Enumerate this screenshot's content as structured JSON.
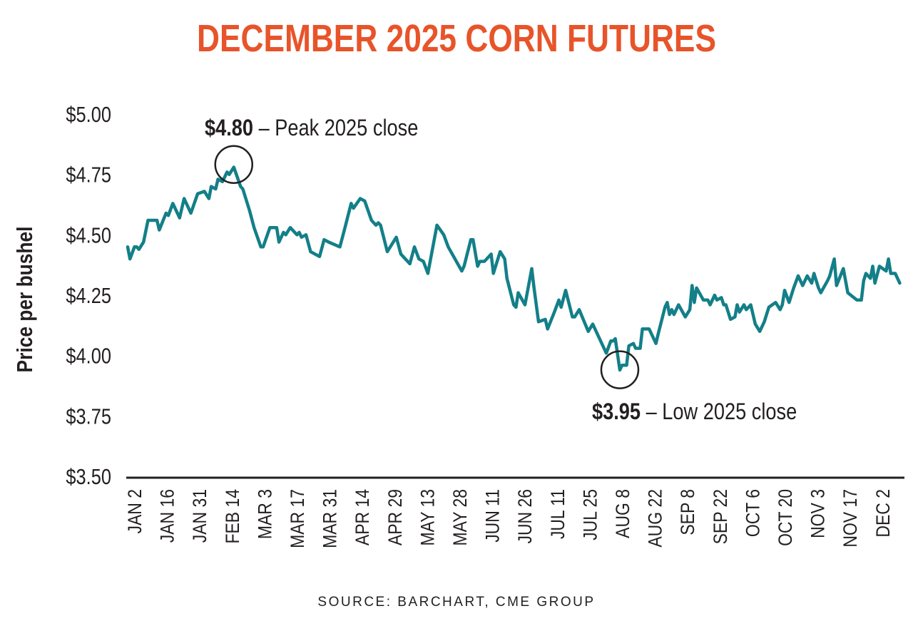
{
  "chart_data": {
    "type": "line",
    "title": "DECEMBER 2025 CORN FUTURES",
    "xlabel": "",
    "ylabel": "Price per bushel",
    "ylim": [
      3.5,
      5.0
    ],
    "yticks": [
      "$3.50",
      "$3.75",
      "$4.00",
      "$4.25",
      "$4.50",
      "$4.75",
      "$5.00"
    ],
    "ytick_values": [
      3.5,
      3.75,
      4.0,
      4.25,
      4.5,
      4.75,
      5.0
    ],
    "xticks": [
      "JAN 2",
      "JAN 16",
      "JAN 31",
      "FEB 14",
      "MAR 3",
      "MAR 17",
      "MAR 31",
      "APR 14",
      "APR 29",
      "MAY 13",
      "MAY 28",
      "JUN 11",
      "JUN 26",
      "JUL 11",
      "JUL 25",
      "AUG 8",
      "AUG 22",
      "SEP 8",
      "SEP 22",
      "OCT 6",
      "OCT 20",
      "NOV 3",
      "NOV 17",
      "DEC 2"
    ],
    "grid": false,
    "line_color": "#137f88",
    "title_color": "#e8542a",
    "source": "SOURCE: BARCHART, CME GROUP",
    "annotations": [
      {
        "value_label": "$4.80",
        "text": " – Peak 2025 close",
        "date": "2025-02-18",
        "value": 4.8
      },
      {
        "value_label": "$3.95",
        "text": " – Low 2025 close",
        "date": "2025-08-08",
        "value": 3.95
      }
    ],
    "series": [
      {
        "points": [
          [
            "2025-01-02",
            4.45
          ],
          [
            "2025-01-03",
            4.4
          ],
          [
            "2025-01-05",
            4.45
          ],
          [
            "2025-01-06",
            4.45
          ],
          [
            "2025-01-07",
            4.44
          ],
          [
            "2025-01-09",
            4.47
          ],
          [
            "2025-01-11",
            4.56
          ],
          [
            "2025-01-15",
            4.56
          ],
          [
            "2025-01-16",
            4.52
          ],
          [
            "2025-01-19",
            4.59
          ],
          [
            "2025-01-20",
            4.58
          ],
          [
            "2025-01-22",
            4.63
          ],
          [
            "2025-01-25",
            4.57
          ],
          [
            "2025-01-27",
            4.65
          ],
          [
            "2025-01-30",
            4.59
          ],
          [
            "2025-02-02",
            4.67
          ],
          [
            "2025-02-05",
            4.68
          ],
          [
            "2025-02-07",
            4.65
          ],
          [
            "2025-02-08",
            4.7
          ],
          [
            "2025-02-10",
            4.69
          ],
          [
            "2025-02-11",
            4.73
          ],
          [
            "2025-02-13",
            4.72
          ],
          [
            "2025-02-15",
            4.76
          ],
          [
            "2025-02-16",
            4.75
          ],
          [
            "2025-02-18",
            4.78
          ],
          [
            "2025-02-21",
            4.7
          ],
          [
            "2025-02-22",
            4.69
          ],
          [
            "2025-02-25",
            4.6
          ],
          [
            "2025-02-27",
            4.53
          ],
          [
            "2025-03-02",
            4.45
          ],
          [
            "2025-03-03",
            4.45
          ],
          [
            "2025-03-06",
            4.53
          ],
          [
            "2025-03-09",
            4.53
          ],
          [
            "2025-03-10",
            4.47
          ],
          [
            "2025-03-12",
            4.51
          ],
          [
            "2025-03-13",
            4.5
          ],
          [
            "2025-03-15",
            4.53
          ],
          [
            "2025-03-18",
            4.5
          ],
          [
            "2025-03-19",
            4.51
          ],
          [
            "2025-03-20",
            4.49
          ],
          [
            "2025-03-22",
            4.5
          ],
          [
            "2025-03-24",
            4.43
          ],
          [
            "2025-03-28",
            4.41
          ],
          [
            "2025-03-30",
            4.48
          ],
          [
            "2025-04-01",
            4.47
          ],
          [
            "2025-04-06",
            4.45
          ],
          [
            "2025-04-08",
            4.52
          ],
          [
            "2025-04-11",
            4.63
          ],
          [
            "2025-04-12",
            4.61
          ],
          [
            "2025-04-15",
            4.65
          ],
          [
            "2025-04-17",
            4.64
          ],
          [
            "2025-04-20",
            4.56
          ],
          [
            "2025-04-22",
            4.54
          ],
          [
            "2025-04-23",
            4.55
          ],
          [
            "2025-04-24",
            4.54
          ],
          [
            "2025-04-27",
            4.43
          ],
          [
            "2025-05-01",
            4.49
          ],
          [
            "2025-05-03",
            4.42
          ],
          [
            "2025-05-05",
            4.4
          ],
          [
            "2025-05-07",
            4.38
          ],
          [
            "2025-05-09",
            4.45
          ],
          [
            "2025-05-11",
            4.4
          ],
          [
            "2025-05-13",
            4.39
          ],
          [
            "2025-05-15",
            4.34
          ],
          [
            "2025-05-19",
            4.54
          ],
          [
            "2025-05-22",
            4.5
          ],
          [
            "2025-05-24",
            4.45
          ],
          [
            "2025-05-30",
            4.35
          ],
          [
            "2025-05-31",
            4.37
          ],
          [
            "2025-06-03",
            4.48
          ],
          [
            "2025-06-04",
            4.48
          ],
          [
            "2025-06-06",
            4.37
          ],
          [
            "2025-06-07",
            4.39
          ],
          [
            "2025-06-09",
            4.39
          ],
          [
            "2025-06-12",
            4.42
          ],
          [
            "2025-06-13",
            4.34
          ],
          [
            "2025-06-16",
            4.43
          ],
          [
            "2025-06-18",
            4.4
          ],
          [
            "2025-06-19",
            4.32
          ],
          [
            "2025-06-22",
            4.21
          ],
          [
            "2025-06-23",
            4.2
          ],
          [
            "2025-06-24",
            4.26
          ],
          [
            "2025-06-27",
            4.21
          ],
          [
            "2025-06-30",
            4.36
          ],
          [
            "2025-07-01",
            4.28
          ],
          [
            "2025-07-03",
            4.14
          ],
          [
            "2025-07-06",
            4.15
          ],
          [
            "2025-07-07",
            4.11
          ],
          [
            "2025-07-10",
            4.18
          ],
          [
            "2025-07-12",
            4.23
          ],
          [
            "2025-07-13",
            4.2
          ],
          [
            "2025-07-15",
            4.27
          ],
          [
            "2025-07-18",
            4.16
          ],
          [
            "2025-07-19",
            4.16
          ],
          [
            "2025-07-21",
            4.19
          ],
          [
            "2025-07-25",
            4.1
          ],
          [
            "2025-07-27",
            4.13
          ],
          [
            "2025-08-02",
            4.01
          ],
          [
            "2025-08-04",
            4.06
          ],
          [
            "2025-08-05",
            4.06
          ],
          [
            "2025-08-06",
            4.07
          ],
          [
            "2025-08-08",
            3.94
          ],
          [
            "2025-08-09",
            3.96
          ],
          [
            "2025-08-11",
            3.96
          ],
          [
            "2025-08-12",
            4.04
          ],
          [
            "2025-08-14",
            4.05
          ],
          [
            "2025-08-15",
            4.03
          ],
          [
            "2025-08-17",
            4.03
          ],
          [
            "2025-08-18",
            4.11
          ],
          [
            "2025-08-21",
            4.11
          ],
          [
            "2025-08-24",
            4.05
          ],
          [
            "2025-08-25",
            4.09
          ],
          [
            "2025-08-28",
            4.2
          ],
          [
            "2025-08-29",
            4.22
          ],
          [
            "2025-08-30",
            4.17
          ],
          [
            "2025-08-31",
            4.19
          ],
          [
            "2025-09-01",
            4.17
          ],
          [
            "2025-09-03",
            4.21
          ],
          [
            "2025-09-06",
            4.16
          ],
          [
            "2025-09-08",
            4.19
          ],
          [
            "2025-09-09",
            4.29
          ],
          [
            "2025-09-10",
            4.22
          ],
          [
            "2025-09-11",
            4.28
          ],
          [
            "2025-09-14",
            4.23
          ],
          [
            "2025-09-16",
            4.23
          ],
          [
            "2025-09-17",
            4.21
          ],
          [
            "2025-09-19",
            4.25
          ],
          [
            "2025-09-20",
            4.23
          ],
          [
            "2025-09-22",
            4.24
          ],
          [
            "2025-09-23",
            4.21
          ],
          [
            "2025-09-24",
            4.21
          ],
          [
            "2025-09-26",
            4.15
          ],
          [
            "2025-09-28",
            4.16
          ],
          [
            "2025-09-29",
            4.21
          ],
          [
            "2025-09-30",
            4.18
          ],
          [
            "2025-10-02",
            4.21
          ],
          [
            "2025-10-03",
            4.19
          ],
          [
            "2025-10-05",
            4.21
          ],
          [
            "2025-10-07",
            4.13
          ],
          [
            "2025-10-09",
            4.1
          ],
          [
            "2025-10-11",
            4.14
          ],
          [
            "2025-10-13",
            4.2
          ],
          [
            "2025-10-16",
            4.22
          ],
          [
            "2025-10-18",
            4.19
          ],
          [
            "2025-10-19",
            4.21
          ],
          [
            "2025-10-20",
            4.27
          ],
          [
            "2025-10-22",
            4.22
          ],
          [
            "2025-10-24",
            4.28
          ],
          [
            "2025-10-26",
            4.33
          ],
          [
            "2025-10-28",
            4.29
          ],
          [
            "2025-10-30",
            4.33
          ],
          [
            "2025-11-01",
            4.3
          ],
          [
            "2025-11-02",
            4.34
          ],
          [
            "2025-11-04",
            4.28
          ],
          [
            "2025-11-05",
            4.26
          ],
          [
            "2025-11-08",
            4.31
          ],
          [
            "2025-11-09",
            4.33
          ],
          [
            "2025-11-11",
            4.4
          ],
          [
            "2025-11-12",
            4.29
          ],
          [
            "2025-11-15",
            4.36
          ],
          [
            "2025-11-17",
            4.26
          ],
          [
            "2025-11-21",
            4.23
          ],
          [
            "2025-11-23",
            4.23
          ],
          [
            "2025-11-24",
            4.31
          ],
          [
            "2025-11-25",
            4.34
          ],
          [
            "2025-11-27",
            4.32
          ],
          [
            "2025-11-28",
            4.37
          ],
          [
            "2025-11-29",
            4.3
          ],
          [
            "2025-12-01",
            4.37
          ],
          [
            "2025-12-04",
            4.35
          ],
          [
            "2025-12-05",
            4.4
          ],
          [
            "2025-12-06",
            4.34
          ],
          [
            "2025-12-08",
            4.34
          ],
          [
            "2025-12-10",
            4.3
          ]
        ]
      }
    ]
  }
}
